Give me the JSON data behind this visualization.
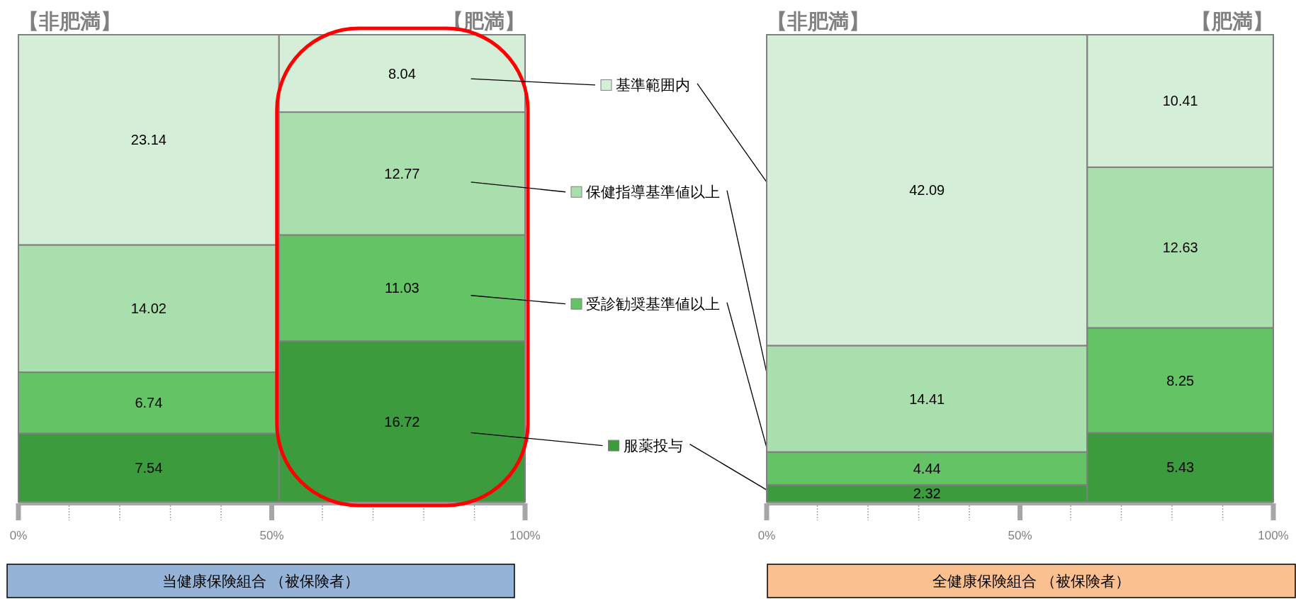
{
  "chart_data": [
    {
      "type": "other",
      "title": "当健康保険組合 （被保険者）",
      "categories": [
        "【非肥満】",
        "【肥満】"
      ],
      "series": [
        {
          "name": "服薬投与",
          "color": "#3c9b3d",
          "values": [
            7.54,
            16.72
          ]
        },
        {
          "name": "受診勧奨基準値以上",
          "color": "#63c365",
          "values": [
            6.74,
            11.03
          ]
        },
        {
          "name": "保健指導基準値以上",
          "color": "#a9dfac",
          "values": [
            14.02,
            12.77
          ]
        },
        {
          "name": "基準範囲内",
          "color": "#d5eed8",
          "values": [
            23.14,
            8.04
          ]
        }
      ],
      "data_labels": true,
      "legend": "right",
      "annotations": [
        "0%",
        "50%",
        "100%"
      ]
    },
    {
      "type": "other",
      "title": "全健康保険組合 （被保険者）",
      "categories": [
        "【非肥満】",
        "【肥満】"
      ],
      "series": [
        {
          "color": "#3c9b3d",
          "values": [
            2.32,
            5.43
          ]
        },
        {
          "color": "#63c365",
          "values": [
            4.44,
            8.25
          ]
        },
        {
          "color": "#a9dfac",
          "values": [
            14.41,
            12.63
          ]
        },
        {
          "color": "#d5eed8",
          "values": [
            42.09,
            10.41
          ]
        }
      ],
      "data_labels": true,
      "annotations": [
        "0%",
        "50%",
        "100%"
      ]
    }
  ]
}
